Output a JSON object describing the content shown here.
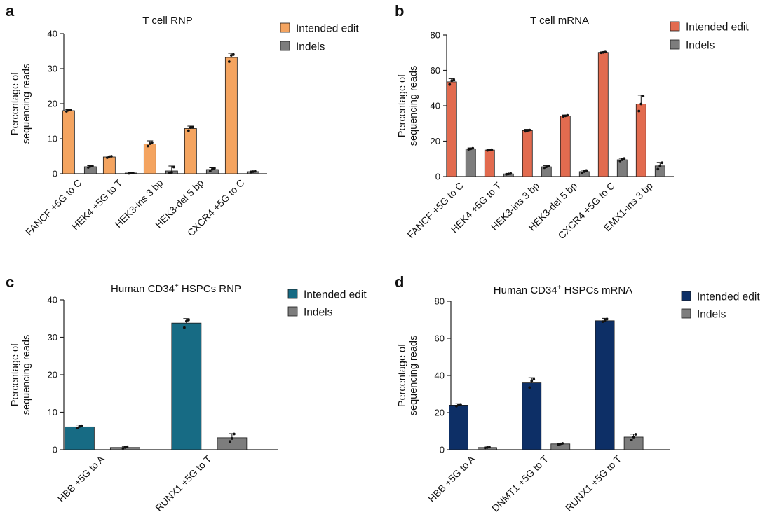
{
  "figure": {
    "panels": [
      "a",
      "b",
      "c",
      "d"
    ]
  },
  "colors": {
    "a_intended": "#F4A460",
    "b_intended": "#E26B4F",
    "c_intended": "#176B84",
    "d_intended": "#0D2F66",
    "indels": "#7D7D7D",
    "axis": "#222222"
  },
  "chart_data": [
    {
      "panel": "a",
      "type": "bar",
      "title": "T cell RNP",
      "ylabel": "Percentage of\nsequencing reads",
      "xlabel": "",
      "ylim": [
        0,
        40
      ],
      "yticks": [
        0,
        10,
        20,
        30,
        40
      ],
      "legend_position": "top-right",
      "categories": [
        "FANCF +5G to C",
        "HEK4 +5G to T",
        "HEK3-ins 3 bp",
        "HEK3-del 5 bp",
        "CXCR4 +5G to C"
      ],
      "series": [
        {
          "name": "Intended edit",
          "color_key": "a_intended",
          "values": [
            18.0,
            4.8,
            8.5,
            12.9,
            33.2
          ],
          "errors": [
            0.3,
            0.3,
            0.9,
            0.7,
            1.2
          ],
          "points": [
            [
              17.8,
              18.1,
              18.2
            ],
            [
              4.6,
              4.9,
              5.0
            ],
            [
              7.9,
              8.6,
              8.9
            ],
            [
              12.3,
              13.2,
              13.3
            ],
            [
              32.0,
              33.8,
              34.0
            ]
          ]
        },
        {
          "name": "Indels",
          "color_key": "indels",
          "values": [
            2.0,
            0.2,
            0.8,
            1.2,
            0.6
          ],
          "errors": [
            0.3,
            0.1,
            1.4,
            0.5,
            0.2
          ],
          "points": [
            [
              1.8,
              2.1,
              2.2
            ],
            [
              0.1,
              0.2,
              0.2
            ],
            [
              0.2,
              0.4,
              1.9
            ],
            [
              0.8,
              1.3,
              1.6
            ],
            [
              0.5,
              0.6,
              0.7
            ]
          ]
        }
      ]
    },
    {
      "panel": "b",
      "type": "bar",
      "title": "T cell mRNA",
      "ylabel": "Percentage of\nsequencing reads",
      "xlabel": "",
      "ylim": [
        0,
        80
      ],
      "yticks": [
        0,
        20,
        40,
        60,
        80
      ],
      "legend_position": "top-right",
      "categories": [
        "FANCF +5G to C",
        "HEK4 +5G to T",
        "HEK3-ins 3 bp",
        "HEK3-del 5 bp",
        "CXCR4 +5G to C",
        "EMX1-ins 3 bp"
      ],
      "series": [
        {
          "name": "Intended edit",
          "color_key": "b_intended",
          "values": [
            53.5,
            15.0,
            26.0,
            34.3,
            70.2,
            41.0
          ],
          "errors": [
            1.8,
            0.5,
            0.7,
            0.5,
            0.3,
            5.0
          ],
          "points": [
            [
              52.0,
              54.2,
              54.5
            ],
            [
              14.8,
              15.0,
              15.2
            ],
            [
              25.6,
              26.0,
              26.3
            ],
            [
              34.0,
              34.3,
              34.6
            ],
            [
              70.0,
              70.2,
              70.4
            ],
            [
              37.0,
              41.0,
              45.5
            ]
          ]
        },
        {
          "name": "Indels",
          "color_key": "indels",
          "values": [
            15.7,
            1.5,
            5.5,
            2.8,
            9.5,
            6.0
          ],
          "errors": [
            0.5,
            0.3,
            0.6,
            0.8,
            0.8,
            2.0
          ],
          "points": [
            [
              15.4,
              15.7,
              16.0
            ],
            [
              1.3,
              1.5,
              1.7
            ],
            [
              5.0,
              5.5,
              6.0
            ],
            [
              2.0,
              2.8,
              3.4
            ],
            [
              8.8,
              9.5,
              10.2
            ],
            [
              4.2,
              6.0,
              7.8
            ]
          ]
        }
      ]
    },
    {
      "panel": "c",
      "type": "bar",
      "title": "Human CD34",
      "title_sup": "+",
      "title_rest": " HSPCs RNP",
      "ylabel": "Percentage of\nsequencing reads",
      "xlabel": "",
      "ylim": [
        0,
        40
      ],
      "yticks": [
        0,
        10,
        20,
        30,
        40
      ],
      "legend_position": "top-right",
      "categories": [
        "HBB +5G to A",
        "RUNX1 +5G to T"
      ],
      "series": [
        {
          "name": "Intended edit",
          "color_key": "c_intended",
          "values": [
            6.1,
            33.8
          ],
          "errors": [
            0.5,
            1.2
          ],
          "points": [
            [
              5.8,
              6.2,
              6.4
            ],
            [
              32.6,
              34.3,
              34.6
            ]
          ]
        },
        {
          "name": "Indels",
          "color_key": "indels",
          "values": [
            0.6,
            3.2
          ],
          "errors": [
            0.3,
            1.1
          ],
          "points": [
            [
              0.4,
              0.6,
              0.8
            ],
            [
              2.2,
              3.0,
              4.2
            ]
          ]
        }
      ]
    },
    {
      "panel": "d",
      "type": "bar",
      "title": "Human CD34",
      "title_sup": "+",
      "title_rest": " HSPCs mRNA",
      "ylabel": "Percentage of\nsequencing reads",
      "xlabel": "",
      "ylim": [
        0,
        80
      ],
      "yticks": [
        0,
        20,
        40,
        60,
        80
      ],
      "legend_position": "top-right",
      "categories": [
        "HBB +5G to A",
        "DNMT1 +5G to T",
        "RUNX1 +5G to T"
      ],
      "series": [
        {
          "name": "Intended edit",
          "color_key": "d_intended",
          "values": [
            24.0,
            36.0,
            69.5
          ],
          "errors": [
            0.8,
            2.8,
            1.3
          ],
          "points": [
            [
              23.5,
              24.2,
              24.4
            ],
            [
              33.5,
              37.0,
              38.0
            ],
            [
              69.0,
              69.6,
              70.4
            ]
          ]
        },
        {
          "name": "Indels",
          "color_key": "indels",
          "values": [
            1.2,
            3.1,
            6.8
          ],
          "errors": [
            0.3,
            0.4,
            1.6
          ],
          "points": [
            [
              1.0,
              1.2,
              1.4
            ],
            [
              2.8,
              3.1,
              3.4
            ],
            [
              5.3,
              6.8,
              8.3
            ]
          ]
        }
      ]
    }
  ]
}
